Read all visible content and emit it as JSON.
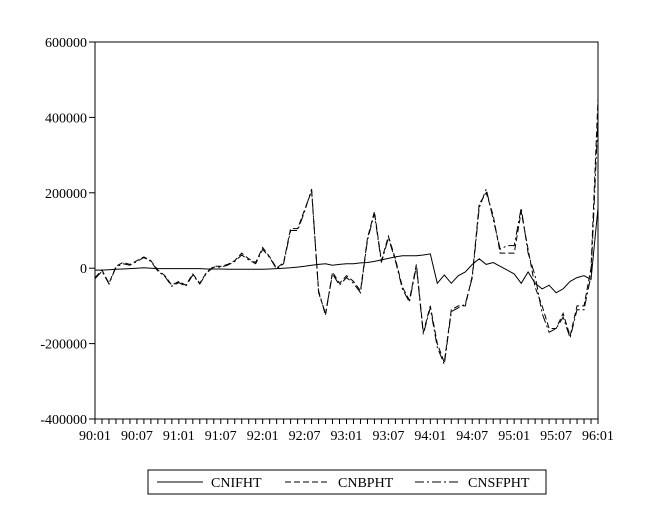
{
  "chart_data": {
    "type": "line",
    "x": [
      "90:01",
      "90:02",
      "90:03",
      "90:04",
      "90:05",
      "90:06",
      "90:07",
      "90:08",
      "90:09",
      "90:10",
      "90:11",
      "90:12",
      "91:01",
      "91:02",
      "91:03",
      "91:04",
      "91:05",
      "91:06",
      "91:07",
      "91:08",
      "91:09",
      "91:10",
      "91:11",
      "91:12",
      "92:01",
      "92:02",
      "92:03",
      "92:04",
      "92:05",
      "92:06",
      "92:07",
      "92:08",
      "92:09",
      "92:10",
      "92:11",
      "92:12",
      "93:01",
      "93:02",
      "93:03",
      "93:04",
      "93:05",
      "93:06",
      "93:07",
      "93:08",
      "93:09",
      "93:10",
      "93:11",
      "93:12",
      "94:01",
      "94:02",
      "94:03",
      "94:04",
      "94:05",
      "94:06",
      "94:07",
      "94:08",
      "94:09",
      "94:10",
      "94:11",
      "94:12",
      "95:01",
      "95:02",
      "95:03",
      "95:04",
      "95:05",
      "95:06",
      "95:07",
      "95:08",
      "95:09",
      "95:10",
      "95:11",
      "95:12",
      "96:01"
    ],
    "xticks": [
      "90:01",
      "90:07",
      "91:01",
      "91:07",
      "92:01",
      "92:07",
      "93:01",
      "93:07",
      "94:01",
      "94:07",
      "95:01",
      "95:07",
      "96:01"
    ],
    "ylim": [
      -400000,
      600000
    ],
    "yticks": [
      -400000,
      -200000,
      0,
      200000,
      400000,
      600000
    ],
    "series": [
      {
        "name": "CNIFHT",
        "dash": "solid",
        "values": [
          -5000,
          -5000,
          -4000,
          -3000,
          -2000,
          -1000,
          0,
          1000,
          0,
          -1000,
          -1000,
          -1000,
          -1000,
          -1000,
          -1000,
          -1000,
          -2000,
          -2000,
          -2000,
          -3000,
          -3000,
          -3000,
          -3000,
          -3000,
          -3000,
          -2000,
          -1000,
          0,
          1000,
          3000,
          5000,
          8000,
          10000,
          12000,
          8000,
          10000,
          12000,
          12000,
          14000,
          15000,
          18000,
          22000,
          26000,
          30000,
          33000,
          33000,
          33000,
          35000,
          38000,
          -40000,
          -18000,
          -40000,
          -20000,
          -10000,
          10000,
          25000,
          10000,
          15000,
          5000,
          -5000,
          -15000,
          -40000,
          -10000,
          -40000,
          -55000,
          -45000,
          -65000,
          -55000,
          -35000,
          -25000,
          -20000,
          -30000,
          160000
        ]
      },
      {
        "name": "CNBPHT",
        "dash": "6,3",
        "values": [
          -25000,
          -5000,
          -40000,
          5000,
          15000,
          10000,
          20000,
          30000,
          20000,
          -5000,
          -20000,
          -45000,
          -35000,
          -45000,
          -15000,
          -40000,
          -10000,
          5000,
          5000,
          10000,
          20000,
          40000,
          25000,
          15000,
          55000,
          30000,
          0,
          15000,
          105000,
          105000,
          155000,
          205000,
          -60000,
          -125000,
          -10000,
          -40000,
          -20000,
          -35000,
          -60000,
          80000,
          150000,
          20000,
          85000,
          25000,
          -50000,
          -85000,
          10000,
          -170000,
          -100000,
          -200000,
          -250000,
          -110000,
          -100000,
          -100000,
          -20000,
          170000,
          200000,
          140000,
          40000,
          40000,
          40000,
          150000,
          50000,
          -50000,
          -100000,
          -160000,
          -160000,
          -120000,
          -180000,
          -100000,
          -100000,
          0,
          450000
        ]
      },
      {
        "name": "CNSFPHT",
        "dash": "9,3,2,3",
        "values": [
          -28000,
          -8000,
          -42000,
          3000,
          12000,
          8000,
          18000,
          28000,
          18000,
          -8000,
          -22000,
          -48000,
          -38000,
          -48000,
          -18000,
          -42000,
          -12000,
          3000,
          3000,
          8000,
          18000,
          35000,
          22000,
          12000,
          50000,
          28000,
          -2000,
          12000,
          100000,
          100000,
          150000,
          210000,
          -65000,
          -120000,
          -15000,
          -45000,
          -25000,
          -40000,
          -65000,
          75000,
          145000,
          15000,
          80000,
          20000,
          -55000,
          -90000,
          5000,
          -175000,
          -105000,
          -210000,
          -255000,
          -115000,
          -105000,
          -95000,
          -25000,
          160000,
          210000,
          130000,
          50000,
          60000,
          60000,
          160000,
          40000,
          -20000,
          -120000,
          -170000,
          -160000,
          -130000,
          -185000,
          -110000,
          -110000,
          -20000,
          400000
        ]
      }
    ],
    "legend_position": "bottom-center",
    "grid": false
  }
}
